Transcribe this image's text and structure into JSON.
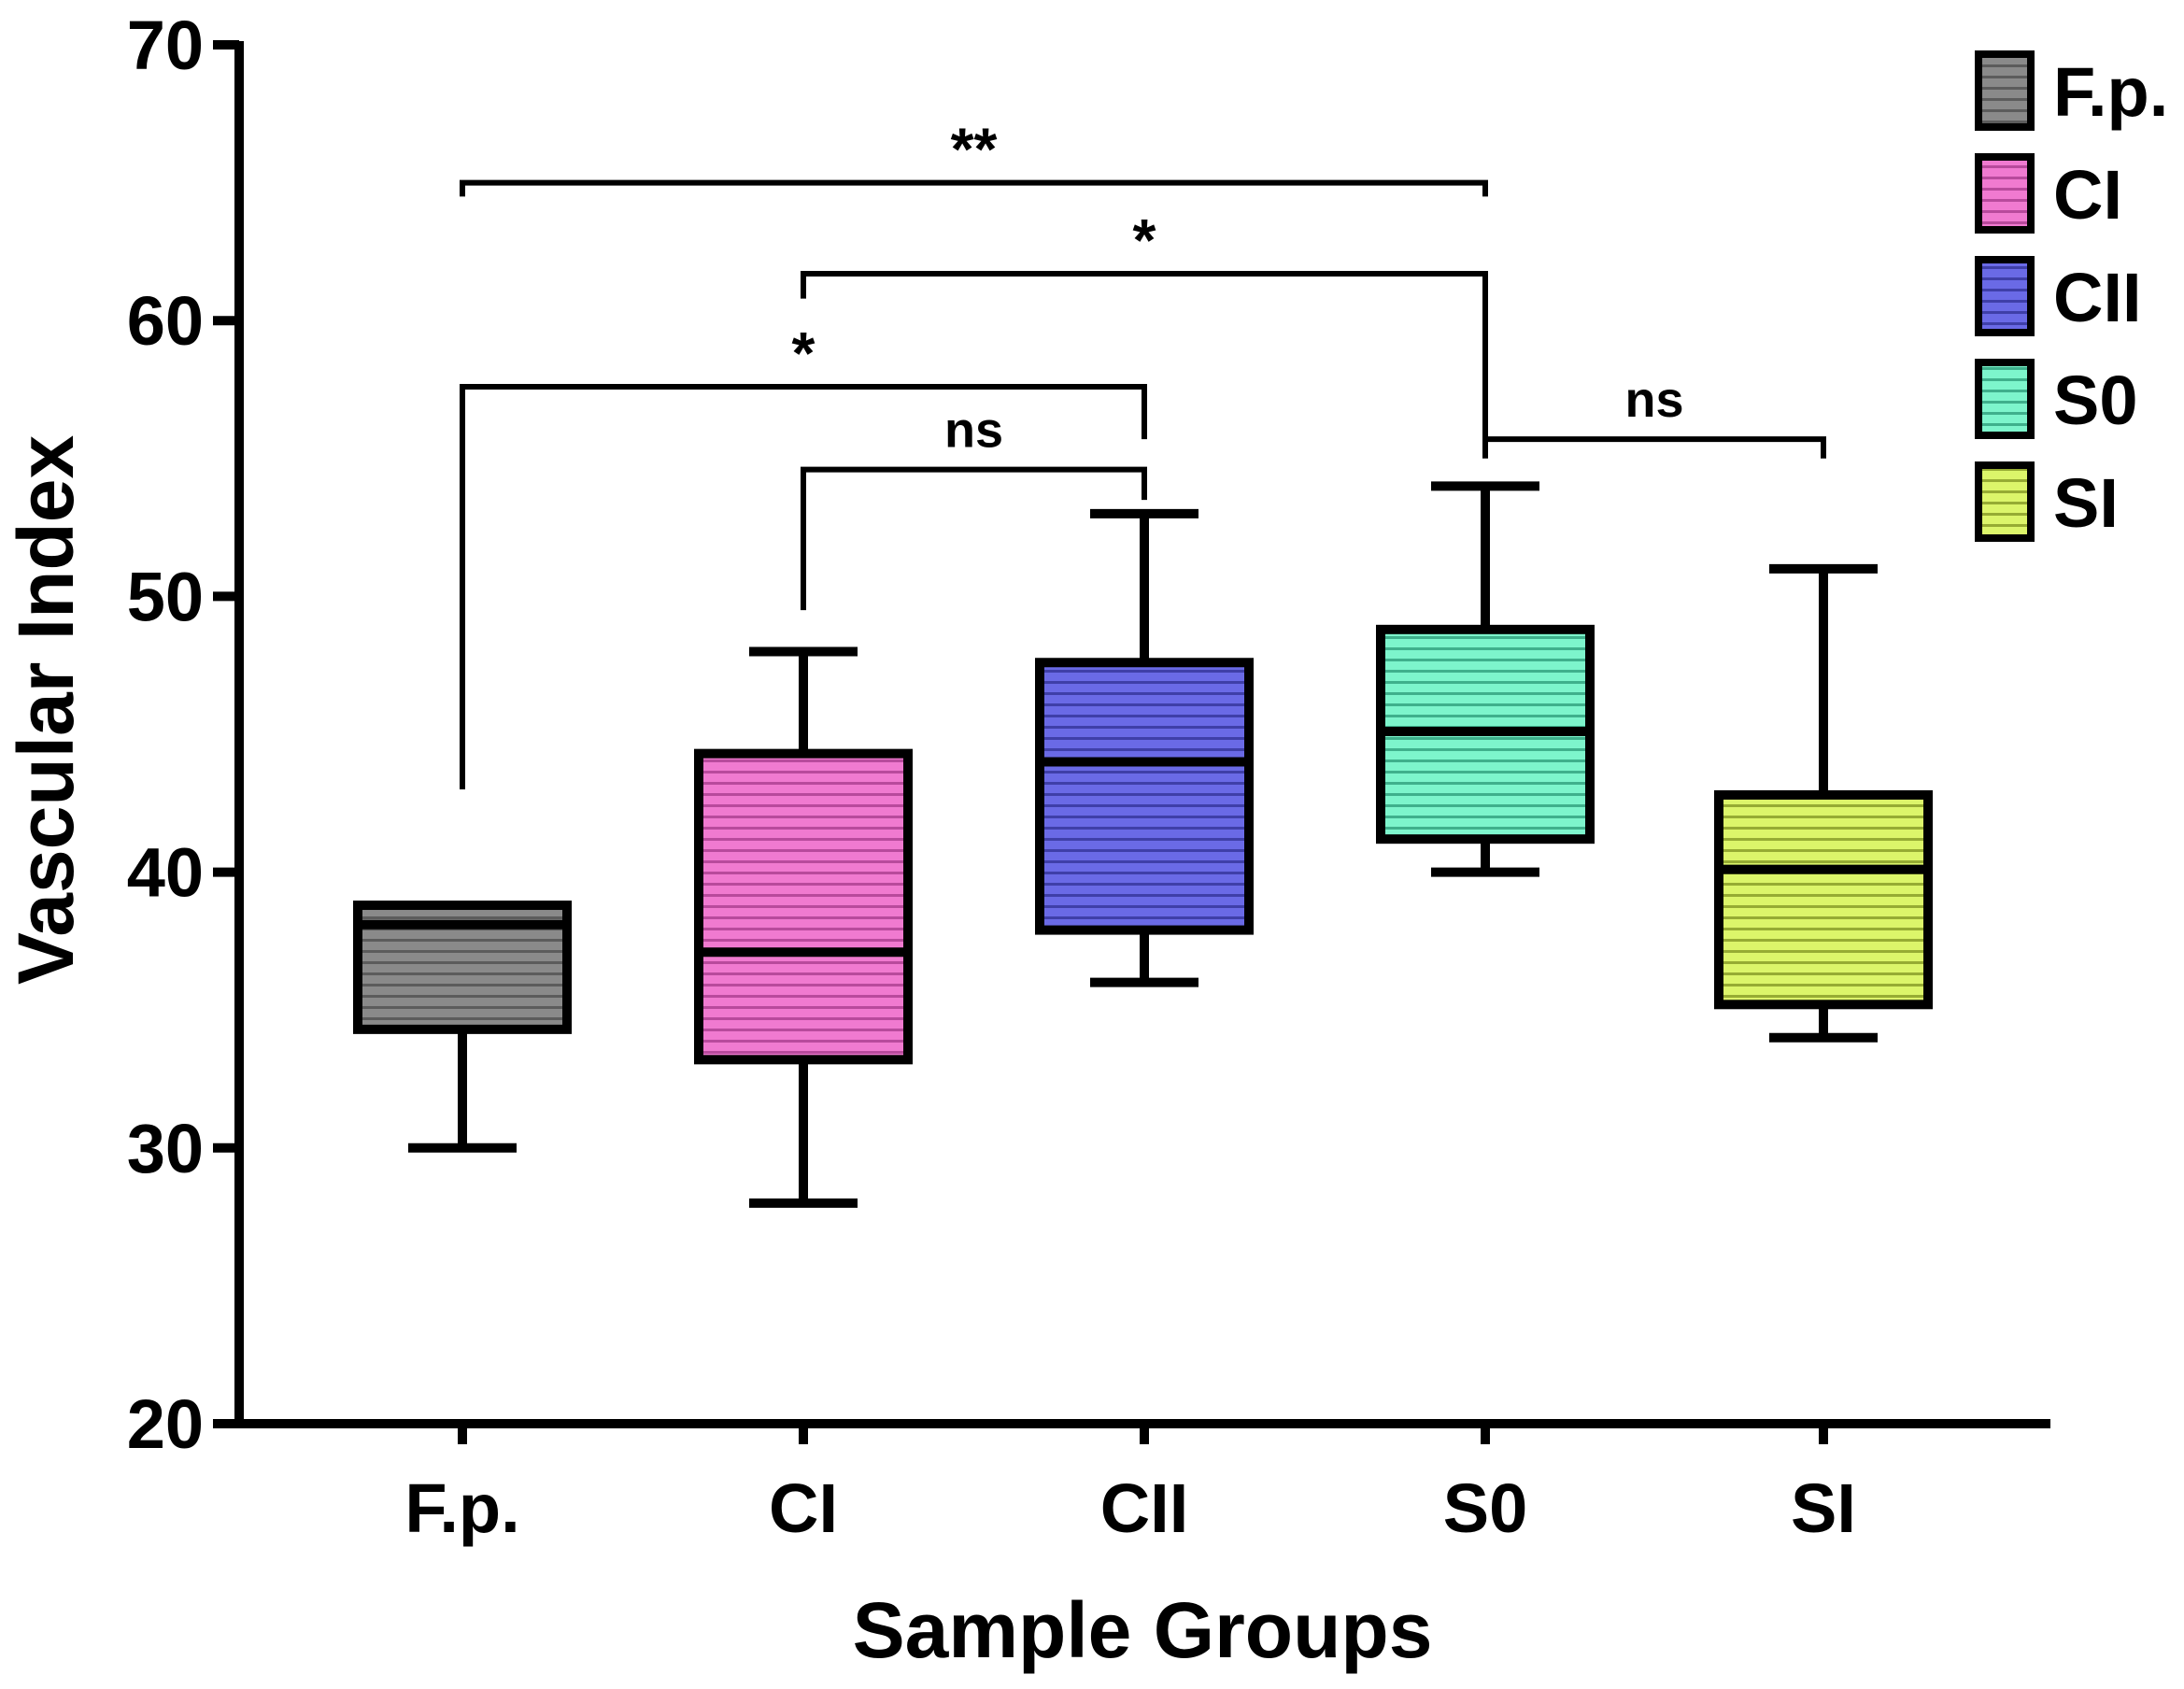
{
  "chart_data": {
    "type": "boxplot",
    "title": "",
    "xlabel": "Sample Groups",
    "ylabel": "Vascular Index",
    "ylim": [
      20,
      70
    ],
    "yticks": [
      20,
      30,
      40,
      50,
      60,
      70
    ],
    "categories": [
      "F.p.",
      "CI",
      "CII",
      "S0",
      "SI"
    ],
    "series": [
      {
        "name": "F.p.",
        "color": "#8a8a8a",
        "stripe": "#5c5c5c",
        "min": 30,
        "q1": 34.3,
        "median": 38.1,
        "q3": 38.8,
        "max": 38.8
      },
      {
        "name": "CI",
        "color": "#f07ad0",
        "stripe": "#b84a9c",
        "min": 28,
        "q1": 33.2,
        "median": 37.1,
        "q3": 44.3,
        "max": 48
      },
      {
        "name": "CII",
        "color": "#6a6ae6",
        "stripe": "#3f3fa8",
        "min": 36,
        "q1": 37.9,
        "median": 44.0,
        "q3": 47.6,
        "max": 53
      },
      {
        "name": "S0",
        "color": "#7df5cc",
        "stripe": "#3fb08c",
        "min": 40,
        "q1": 41.2,
        "median": 45.1,
        "q3": 48.8,
        "max": 54
      },
      {
        "name": "SI",
        "color": "#dcf56a",
        "stripe": "#96ab33",
        "min": 34,
        "q1": 35.2,
        "median": 40.1,
        "q3": 42.8,
        "max": 51
      }
    ],
    "significance": [
      {
        "from": "F.p.",
        "to": "S0",
        "label": "**",
        "y": 65.0,
        "left_end": 64.5,
        "right_end": 64.5
      },
      {
        "from": "CI",
        "to": "S0",
        "label": "*",
        "y": 61.7,
        "left_end": 60.8,
        "right_end": 55.3
      },
      {
        "from": "F.p.",
        "to": "CII",
        "label": "*",
        "y": 57.6,
        "left_end": 43.0,
        "right_end": 55.7
      },
      {
        "from": "CI",
        "to": "CII",
        "label": "ns",
        "y": 54.6,
        "left_end": 49.5,
        "right_end": 53.5
      },
      {
        "from": "S0",
        "to": "SI",
        "label": "ns",
        "y": 55.7,
        "left_end": 55.0,
        "right_end": 55.0
      }
    ],
    "legend": {
      "position": "top-right",
      "entries": [
        "F.p.",
        "CI",
        "CII",
        "S0",
        "SI"
      ]
    },
    "grid": false
  }
}
